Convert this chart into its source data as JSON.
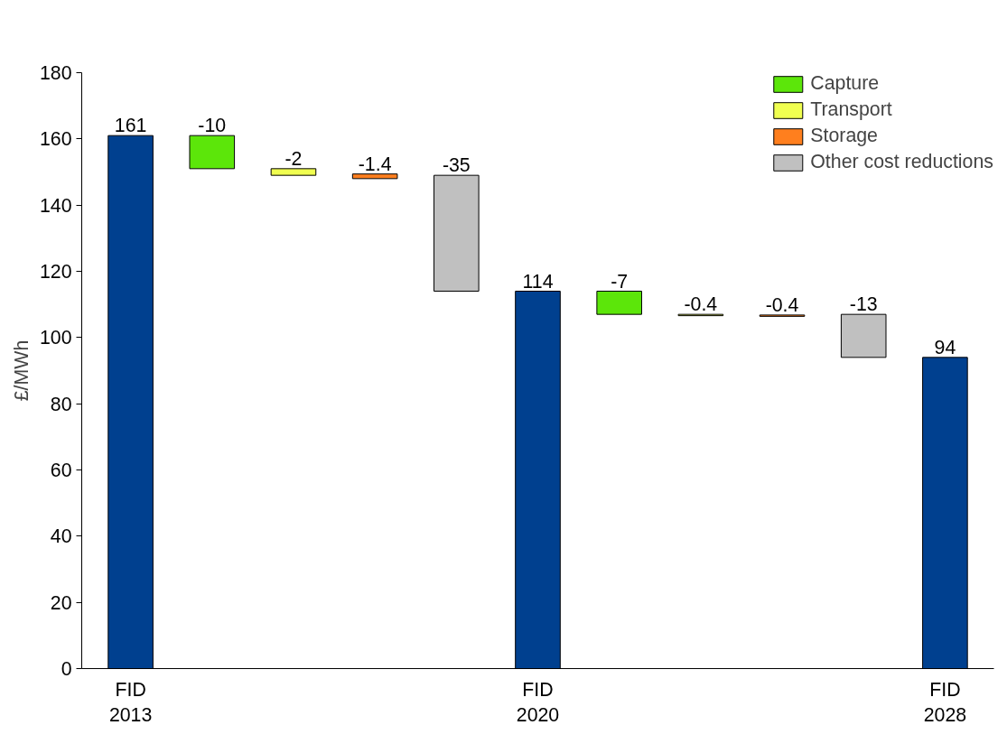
{
  "chart_data": {
    "type": "bar",
    "ylabel": "£/MWh",
    "categories": [
      "FID\n2013",
      null,
      null,
      null,
      null,
      "FID\n2020",
      null,
      null,
      null,
      null,
      "FID\n2028"
    ],
    "series": [
      {
        "color": "#00408f",
        "values": [
          161,
          null,
          null,
          null,
          null,
          114,
          null,
          null,
          null,
          null,
          94
        ],
        "base": [
          0,
          null,
          null,
          null,
          null,
          0,
          null,
          null,
          null,
          null,
          0
        ]
      },
      {
        "name": "Capture",
        "color": "#5ce60a",
        "values": [
          null,
          -10,
          null,
          null,
          null,
          null,
          -7,
          null,
          null,
          null,
          null
        ],
        "base": [
          null,
          161,
          null,
          null,
          null,
          null,
          114,
          null,
          null,
          null,
          null
        ]
      },
      {
        "name": "Transport",
        "color": "#f0ff50",
        "values": [
          null,
          null,
          -2,
          null,
          null,
          null,
          null,
          -0.4,
          null,
          null,
          null
        ],
        "base": [
          null,
          null,
          151,
          null,
          null,
          null,
          null,
          107,
          null,
          null,
          null
        ]
      },
      {
        "name": "Storage",
        "color": "#ff7f1e",
        "values": [
          null,
          null,
          null,
          -1.4,
          null,
          null,
          null,
          null,
          -0.4,
          null,
          null
        ],
        "base": [
          null,
          null,
          null,
          149.4,
          null,
          null,
          null,
          null,
          106.8,
          null,
          null
        ]
      },
      {
        "name": "Other cost reductions",
        "color": "#c0c0c0",
        "values": [
          null,
          null,
          null,
          null,
          -35,
          null,
          null,
          null,
          null,
          -13,
          null
        ],
        "base": [
          null,
          null,
          null,
          null,
          149,
          null,
          null,
          null,
          null,
          107,
          null
        ]
      }
    ],
    "ylim": [
      0,
      180
    ],
    "yticks": [
      0,
      20,
      40,
      60,
      80,
      100,
      120,
      140,
      160,
      180
    ],
    "grid": false,
    "legend": "top right",
    "data_labels": true
  }
}
